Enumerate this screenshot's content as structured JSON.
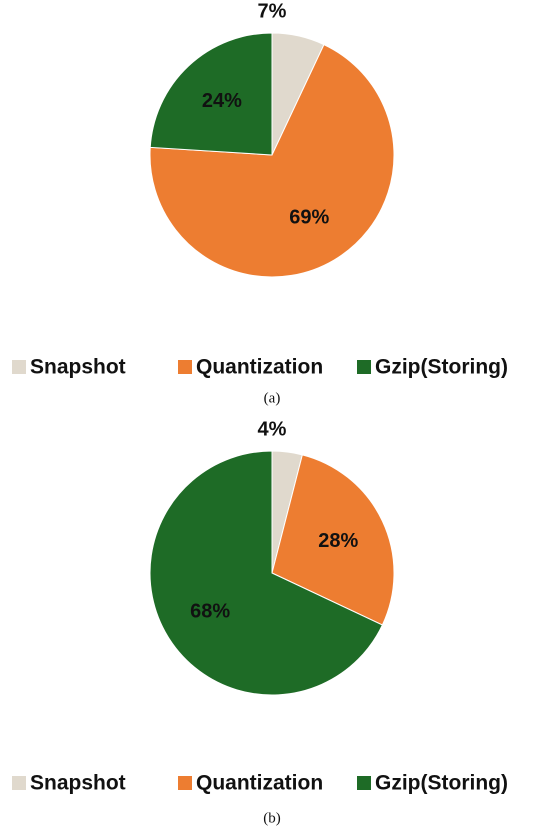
{
  "chart_data": [
    {
      "type": "pie",
      "caption": "(a)",
      "categories": [
        "Snapshot",
        "Quantization",
        "Gzip(Storing)"
      ],
      "values": [
        7,
        69,
        24
      ],
      "value_labels": [
        "7%",
        "69%",
        "24%"
      ],
      "colors": [
        "#e0d9cd",
        "#ed7d31",
        "#1e6b26"
      ]
    },
    {
      "type": "pie",
      "caption": "(b)",
      "categories": [
        "Snapshot",
        "Quantization",
        "Gzip(Storing)"
      ],
      "values": [
        4,
        28,
        68
      ],
      "value_labels": [
        "4%",
        "28%",
        "68%"
      ],
      "colors": [
        "#e0d9cd",
        "#ed7d31",
        "#1e6b26"
      ]
    }
  ]
}
